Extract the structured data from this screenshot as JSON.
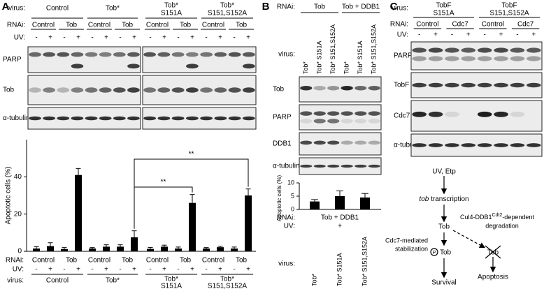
{
  "panel_a": {
    "label": "A",
    "virus_label": "virus:",
    "viruses": [
      [
        "Control"
      ],
      [
        "Tob*"
      ],
      [
        "Tob*",
        "S151A"
      ],
      [
        "Tob*",
        "S151,S152A"
      ]
    ],
    "rnai_label": "RNAi:",
    "rnai": [
      "Control",
      "Tob"
    ],
    "uv_label": "UV:",
    "uv": [
      "-",
      "+"
    ],
    "blots": [
      "PARP",
      "Tob",
      "α-tubulin"
    ],
    "chart": {
      "type": "bar",
      "y_label": "Apoptotic cells (%)",
      "ylim": [
        0,
        60
      ],
      "yticks": [
        0,
        20,
        40
      ],
      "color": "#000000",
      "values": [
        1.5,
        2.8,
        1.2,
        41,
        1.5,
        2.5,
        2.5,
        7.5,
        1.3,
        2.5,
        1.5,
        26,
        1.5,
        2.2,
        1.5,
        30
      ],
      "errors": [
        1,
        1.8,
        0.8,
        3.5,
        0.5,
        1,
        1,
        3.5,
        0.8,
        0.8,
        0.8,
        4.5,
        0.5,
        0.5,
        0.8,
        3.5
      ],
      "significance": [
        "**",
        "**"
      ]
    }
  },
  "panel_b": {
    "label": "B",
    "rnai_label": "RNAi:",
    "rnai": [
      "Tob",
      "Tob + DDB1"
    ],
    "virus_label": "virus:",
    "viruses": [
      "Tob*",
      "Tob* S151A",
      "Tob* S151,S152A"
    ],
    "uv_label": "UV:",
    "uv": "+",
    "blots": [
      "Tob",
      "PARP",
      "DDB1",
      "α-tubulin"
    ],
    "chart": {
      "type": "bar",
      "y_label": "Apoptotic cells (%)",
      "ylim": [
        0,
        10
      ],
      "yticks": [
        0,
        5,
        10
      ],
      "color": "#000000",
      "values": [
        3,
        5,
        4.5
      ],
      "errors": [
        0.7,
        2,
        1.5
      ]
    }
  },
  "panel_c": {
    "label": "C",
    "virus_label": "virus:",
    "viruses": [
      [
        "TobF",
        "S151A"
      ],
      [
        "TobF",
        "S151,S152A"
      ]
    ],
    "rnai_label": "RNAi:",
    "rnai": [
      "Control",
      "Cdc7"
    ],
    "uv_label": "UV:",
    "uv": [
      "-",
      "+"
    ],
    "blots": [
      "PARP",
      "TobF",
      "Cdc7",
      "α-tubulin"
    ],
    "diagram": {
      "stimulus": "UV, Etp",
      "transcription_gene": "tob",
      "transcription_word": " transcription",
      "protein": "Tob",
      "stabilization": [
        "Cdc7-mediated",
        "stabilization"
      ],
      "phospho": "P",
      "phospho_protein": "Tob",
      "survival": "Survival",
      "degradation_pre": "Cul4-DDB1",
      "degradation_sup": "Cdt2",
      "degradation_post": "-dependent",
      "degradation_word": "degradation",
      "degraded_protein": "Tob",
      "apoptosis": "Apoptosis"
    }
  }
}
